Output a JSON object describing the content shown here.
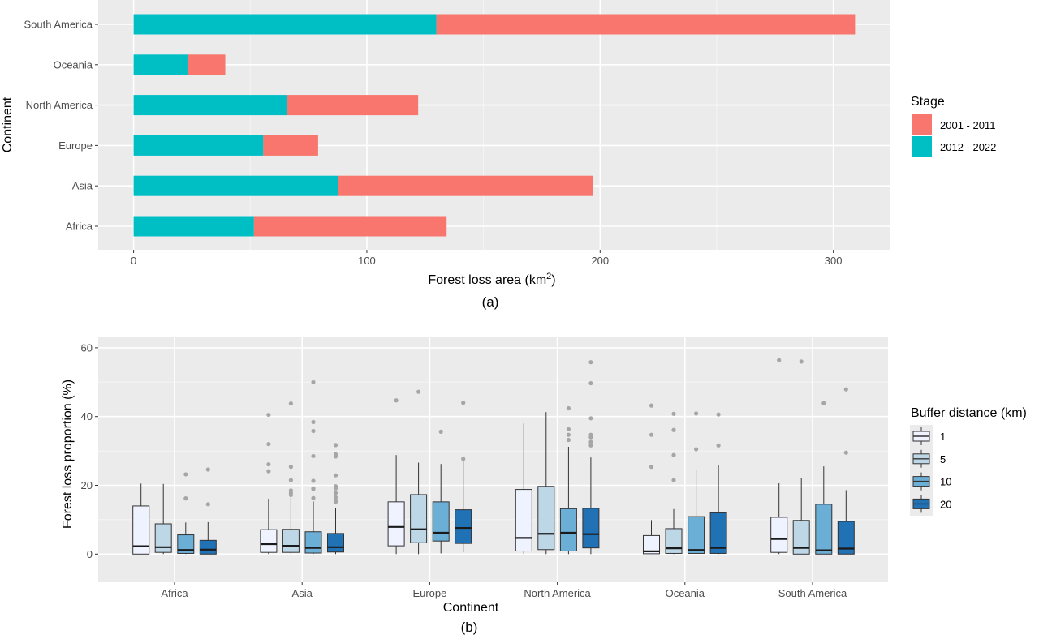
{
  "chart_data": [
    {
      "type": "bar",
      "orientation": "horizontal",
      "stacked": true,
      "caption": "(a)",
      "categories": [
        "Africa",
        "Asia",
        "Europe",
        "North America",
        "Oceania",
        "South America"
      ],
      "series": [
        {
          "name": "2012 - 2022",
          "color": "#00BFC4",
          "values": [
            51.6,
            87.6,
            55.6,
            65.6,
            23.1,
            129.8
          ]
        },
        {
          "name": "2001 - 2011",
          "color": "#F8766D",
          "values": [
            82.6,
            109.3,
            23.5,
            56.4,
            16.2,
            179.5
          ]
        }
      ],
      "xlabel": "Forest loss area (km",
      "xlabel_sup": "2",
      "xlabel_end": ")",
      "ylabel": "Continent",
      "xlim": [
        -15,
        325
      ],
      "xticks": [
        0,
        100,
        200,
        300
      ],
      "grid": true,
      "legend": {
        "title": "Stage",
        "position": "right",
        "entries": [
          {
            "label": "2001 - 2011",
            "color": "#F8766D"
          },
          {
            "label": "2012 - 2022",
            "color": "#00BFC4"
          }
        ]
      }
    },
    {
      "type": "boxplot",
      "caption": "(b)",
      "categories": [
        "Africa",
        "Asia",
        "Europe",
        "North America",
        "Oceania",
        "South America"
      ],
      "xlabel": "Continent",
      "ylabel": "Forest loss proportion (%)",
      "ylim": [
        -8,
        67
      ],
      "yticks": [
        0,
        20,
        40,
        60
      ],
      "grid": true,
      "legend": {
        "title": "Buffer distance (km)",
        "position": "right"
      },
      "series": [
        {
          "name": "1",
          "color": "#EFF3FF",
          "boxes": [
            {
              "category": "Africa",
              "whisker_low": 0,
              "q1": 0,
              "median": 2.3,
              "q3": 14.0,
              "whisker_high": 20.5,
              "outliers": []
            },
            {
              "category": "Asia",
              "whisker_low": 0,
              "q1": 0.5,
              "median": 2.9,
              "q3": 7.1,
              "whisker_high": 16.1,
              "outliers": [
                24.1,
                26.1,
                32.0,
                40.5
              ]
            },
            {
              "category": "Europe",
              "whisker_low": 0,
              "q1": 2.4,
              "median": 7.9,
              "q3": 15.2,
              "whisker_high": 28.8,
              "outliers": [
                44.7
              ]
            },
            {
              "category": "North America",
              "whisker_low": 0,
              "q1": 0.9,
              "median": 4.7,
              "q3": 18.8,
              "whisker_high": 38.0,
              "outliers": []
            },
            {
              "category": "Oceania",
              "whisker_low": 0,
              "q1": 0.1,
              "median": 0.8,
              "q3": 5.4,
              "whisker_high": 9.9,
              "outliers": [
                25.4,
                34.7,
                43.2
              ]
            },
            {
              "category": "South America",
              "whisker_low": 0,
              "q1": 0.5,
              "median": 4.4,
              "q3": 10.7,
              "whisker_high": 20.6,
              "outliers": [
                56.4
              ]
            }
          ]
        },
        {
          "name": "5",
          "color": "#BDD7E7",
          "boxes": [
            {
              "category": "Africa",
              "whisker_low": 0,
              "q1": 0.5,
              "median": 2.0,
              "q3": 8.8,
              "whisker_high": 20.4,
              "outliers": []
            },
            {
              "category": "Asia",
              "whisker_low": 0,
              "q1": 0.5,
              "median": 2.4,
              "q3": 7.2,
              "whisker_high": 16.5,
              "outliers": [
                17.2,
                17.8,
                18.5,
                21.5,
                25.4,
                43.8
              ]
            },
            {
              "category": "Europe",
              "whisker_low": 0,
              "q1": 3.3,
              "median": 7.2,
              "q3": 17.3,
              "whisker_high": 26.6,
              "outliers": [
                47.2
              ]
            },
            {
              "category": "North America",
              "whisker_low": 0,
              "q1": 1.3,
              "median": 5.9,
              "q3": 19.7,
              "whisker_high": 41.3,
              "outliers": []
            },
            {
              "category": "Oceania",
              "whisker_low": 0,
              "q1": 0.2,
              "median": 1.7,
              "q3": 7.4,
              "whisker_high": 13.1,
              "outliers": [
                21.5,
                28.8,
                36.1,
                40.8
              ]
            },
            {
              "category": "South America",
              "whisker_low": 0,
              "q1": 0,
              "median": 1.8,
              "q3": 9.8,
              "whisker_high": 22.2,
              "outliers": [
                56.0
              ]
            }
          ]
        },
        {
          "name": "10",
          "color": "#6BAED6",
          "boxes": [
            {
              "category": "Africa",
              "whisker_low": 0,
              "q1": 0.2,
              "median": 1.2,
              "q3": 5.6,
              "whisker_high": 9.2,
              "outliers": [
                16.2,
                23.2
              ]
            },
            {
              "category": "Asia",
              "whisker_low": 0,
              "q1": 0.3,
              "median": 1.8,
              "q3": 6.5,
              "whisker_high": 15.3,
              "outliers": [
                16.3,
                18.9,
                19.1,
                21.3,
                28.5,
                35.8,
                38.4,
                50.0
              ]
            },
            {
              "category": "Europe",
              "whisker_low": 0.2,
              "q1": 3.8,
              "median": 6.2,
              "q3": 15.2,
              "whisker_high": 26.2,
              "outliers": [
                35.6
              ]
            },
            {
              "category": "North America",
              "whisker_low": 0,
              "q1": 0.9,
              "median": 6.2,
              "q3": 13.2,
              "whisker_high": 31.2,
              "outliers": [
                33.2,
                34.7,
                36.3,
                42.4
              ]
            },
            {
              "category": "Oceania",
              "whisker_low": 0,
              "q1": 0.2,
              "median": 1.2,
              "q3": 10.9,
              "whisker_high": 24.4,
              "outliers": [
                30.5,
                40.9
              ]
            },
            {
              "category": "South America",
              "whisker_low": 0,
              "q1": 0,
              "median": 1.1,
              "q3": 14.5,
              "whisker_high": 25.5,
              "outliers": [
                43.9
              ]
            }
          ]
        },
        {
          "name": "20",
          "color": "#2171B5",
          "boxes": [
            {
              "category": "Africa",
              "whisker_low": 0,
              "q1": 0,
              "median": 1.3,
              "q3": 4.0,
              "whisker_high": 9.3,
              "outliers": [
                14.5,
                24.6
              ]
            },
            {
              "category": "Asia",
              "whisker_low": 0,
              "q1": 0.6,
              "median": 2.0,
              "q3": 6.0,
              "whisker_high": 13.3,
              "outliers": [
                15.2,
                15.7,
                16.5,
                17.8,
                19.1,
                19.7,
                22.9,
                28.4,
                29.0,
                31.7
              ]
            },
            {
              "category": "Europe",
              "whisker_low": 0.5,
              "q1": 3.1,
              "median": 7.6,
              "q3": 12.9,
              "whisker_high": 27.5,
              "outliers": [
                27.7,
                44.0
              ]
            },
            {
              "category": "North America",
              "whisker_low": 0,
              "q1": 1.8,
              "median": 5.8,
              "q3": 13.3,
              "whisker_high": 28.1,
              "outliers": [
                31.6,
                32.6,
                34.0,
                34.7,
                39.5,
                49.7,
                55.8
              ]
            },
            {
              "category": "Oceania",
              "whisker_low": 0,
              "q1": 0.2,
              "median": 1.8,
              "q3": 12.0,
              "whisker_high": 25.9,
              "outliers": [
                31.6,
                40.6
              ]
            },
            {
              "category": "South America",
              "whisker_low": 0,
              "q1": 0,
              "median": 1.6,
              "q3": 9.5,
              "whisker_high": 18.6,
              "outliers": [
                29.5,
                47.9
              ]
            }
          ]
        }
      ]
    }
  ]
}
